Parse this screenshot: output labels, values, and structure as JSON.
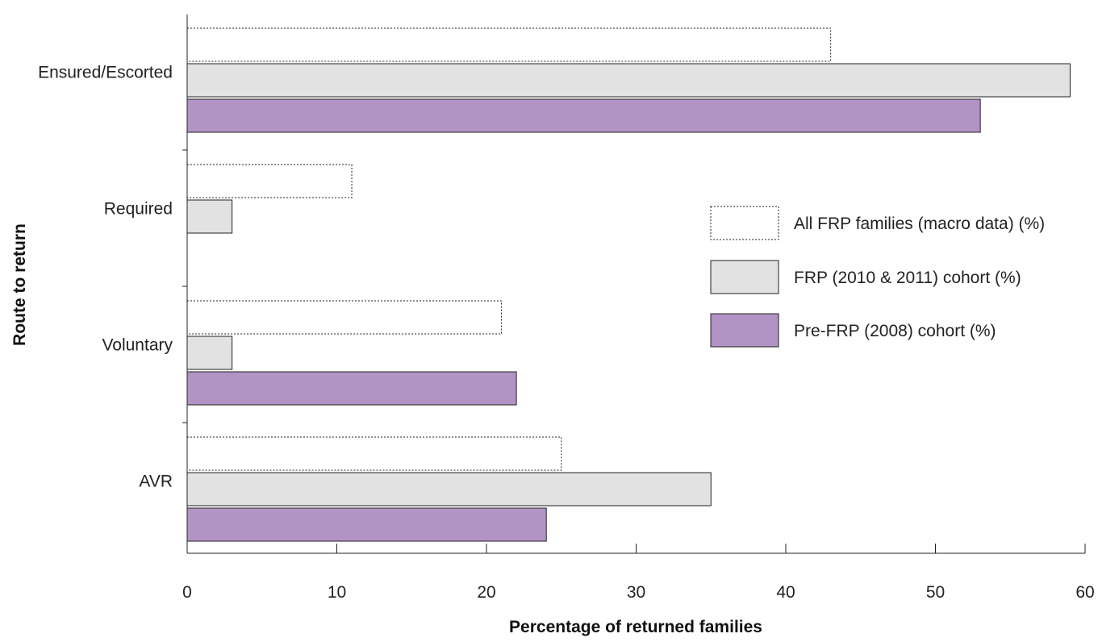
{
  "chart_data": {
    "type": "bar",
    "orientation": "horizontal",
    "title": "",
    "xlabel": "Percentage of returned families",
    "ylabel": "Route to return",
    "xlim": [
      0,
      60
    ],
    "xticks": [
      0,
      10,
      20,
      30,
      40,
      50,
      60
    ],
    "categories": [
      "Ensured/Escorted",
      "Required",
      "Voluntary",
      "AVR"
    ],
    "series": [
      {
        "name": "All FRP families (macro data) (%)",
        "values": [
          43,
          11,
          21,
          25
        ],
        "color": "#ffffff",
        "border_style": "dotted"
      },
      {
        "name": "FRP (2010 & 2011) cohort (%)",
        "values": [
          59,
          3,
          3,
          35
        ],
        "color": "#e2e2e2",
        "border_style": "solid"
      },
      {
        "name": "Pre-FRP (2008) cohort (%)",
        "values": [
          53,
          0,
          22,
          24
        ],
        "color": "#b193c5",
        "border_style": "solid"
      }
    ],
    "grid": false,
    "legend_position": "right"
  }
}
